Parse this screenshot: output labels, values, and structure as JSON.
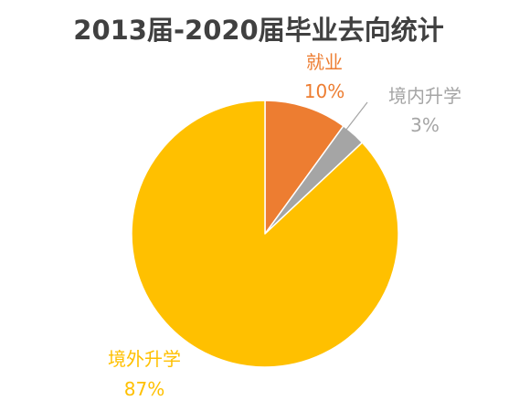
{
  "chart_data": {
    "type": "pie",
    "title": "2013届-2020届毕业去向统计",
    "slices": [
      {
        "name": "就业",
        "value": 10,
        "value_label": "10%",
        "color": "#ED7D31"
      },
      {
        "name": "境内升学",
        "value": 3,
        "value_label": "3%",
        "color": "#A5A5A5"
      },
      {
        "name": "境外升学",
        "value": 87,
        "value_label": "87%",
        "color": "#FFC000"
      }
    ],
    "legend": "none",
    "start_angle": "12 o'clock",
    "direction": "clockwise"
  }
}
